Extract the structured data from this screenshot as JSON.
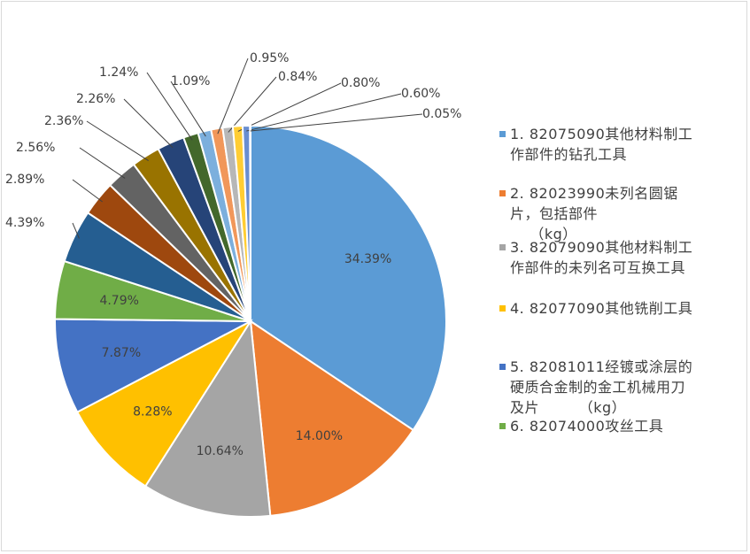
{
  "chart_data": {
    "type": "pie",
    "title": "",
    "legend_position": "right",
    "slices": [
      {
        "label": "1.82075090其他材料制工作部件的钻孔工具",
        "value": 34.39,
        "display": "34.39%",
        "color": "#5b9bd5"
      },
      {
        "label": "2.82023990未列名圆锯片，包括部件（kg）",
        "value": 14.0,
        "display": "14.00%",
        "color": "#ed7d31"
      },
      {
        "label": "3.82079090其他材料制工作部件的未列名可互换工具",
        "value": 10.64,
        "display": "10.64%",
        "color": "#a5a5a5"
      },
      {
        "label": "4.82077090其他铣削工具",
        "value": 8.28,
        "display": "8.28%",
        "color": "#ffc000"
      },
      {
        "label": "5.82081011经镀或涂层的硬质合金制的金工机械用刀及片（kg）",
        "value": 7.87,
        "display": "7.87%",
        "color": "#4472c4"
      },
      {
        "label": "6.82074000攻丝工具",
        "value": 4.79,
        "display": "4.79%",
        "color": "#70ad47"
      },
      {
        "label": "",
        "value": 4.39,
        "display": "4.39%",
        "color": "#255e91"
      },
      {
        "label": "",
        "value": 2.89,
        "display": "2.89%",
        "color": "#9e480e"
      },
      {
        "label": "",
        "value": 2.56,
        "display": "2.56%",
        "color": "#636363"
      },
      {
        "label": "",
        "value": 2.36,
        "display": "2.36%",
        "color": "#997300"
      },
      {
        "label": "",
        "value": 2.26,
        "display": "2.26%",
        "color": "#264478"
      },
      {
        "label": "",
        "value": 1.24,
        "display": "1.24%",
        "color": "#43682b"
      },
      {
        "label": "",
        "value": 1.09,
        "display": "1.09%",
        "color": "#7cafdd"
      },
      {
        "label": "",
        "value": 0.95,
        "display": "0.95%",
        "color": "#f1975a"
      },
      {
        "label": "",
        "value": 0.84,
        "display": "0.84%",
        "color": "#b7b7b7"
      },
      {
        "label": "",
        "value": 0.8,
        "display": "0.80%",
        "color": "#ffcd33"
      },
      {
        "label": "",
        "value": 0.6,
        "display": "0.60%",
        "color": "#698ed0"
      },
      {
        "label": "",
        "value": 0.05,
        "display": "0.05%",
        "color": "#8cc168"
      }
    ]
  },
  "legend": {
    "items": [
      {
        "text": "1. 82075090其他材料制工\n作部件的钻孔工具",
        "color": "#5b9bd5"
      },
      {
        "text": "2. 82023990未列名圆锯\n片，包括部件\n    （kg）",
        "color": "#ed7d31"
      },
      {
        "text": "3. 82079090其他材料制工\n作部件的未列名可互换工具",
        "color": "#a5a5a5"
      },
      {
        "text": "4. 82077090其他铣削工具",
        "color": "#ffc000"
      },
      {
        "text": "5. 82081011经镀或涂层的\n硬质合金制的金工机械用刀\n及片        （kg）",
        "color": "#4472c4"
      },
      {
        "text": "6. 82074000攻丝工具",
        "color": "#70ad47"
      }
    ]
  }
}
